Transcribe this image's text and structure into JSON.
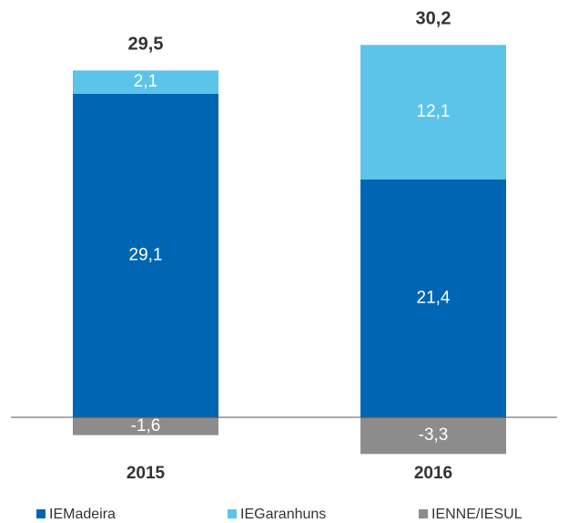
{
  "chart_data": {
    "type": "stacked_bar",
    "categories": [
      "2015",
      "2016"
    ],
    "series": [
      {
        "name": "IEMadeira",
        "color": "#0066b3",
        "values": [
          29.1,
          21.4
        ],
        "value_labels": [
          "29,1",
          "21,4"
        ]
      },
      {
        "name": "IEGaranhuns",
        "color": "#5bc4e8",
        "values": [
          2.1,
          12.1
        ],
        "value_labels": [
          "2,1",
          "12,1"
        ]
      },
      {
        "name": "IENNE/IESUL",
        "color": "#8c8c8c",
        "values": [
          -1.6,
          -3.3
        ],
        "value_labels": [
          "-1,6",
          "-3,3"
        ]
      }
    ],
    "totals": [
      29.5,
      30.2
    ],
    "total_labels": [
      "29,5",
      "30,2"
    ],
    "ylim": [
      -4,
      34
    ],
    "legend": "bottom"
  }
}
